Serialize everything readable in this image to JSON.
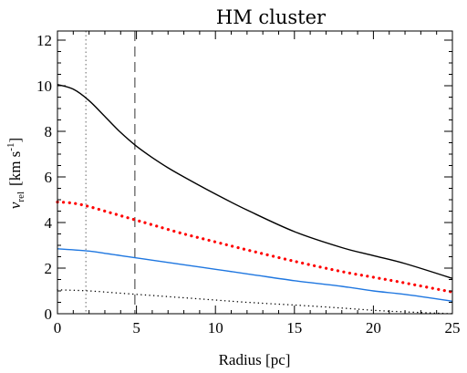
{
  "chart_data": {
    "type": "line",
    "title": "HM cluster",
    "xlabel": "Radius [pc]",
    "ylabel_main": "v",
    "ylabel_sub": "rel",
    "ylabel_unit_open": "[km s",
    "ylabel_unit_sup": "-1",
    "ylabel_unit_close": "]",
    "xlim": [
      0,
      25
    ],
    "ylim": [
      0,
      12.4
    ],
    "xticks": [
      0,
      5,
      10,
      15,
      20,
      25
    ],
    "xtick_labels": [
      "0",
      "5",
      "10",
      "15",
      "20",
      "25"
    ],
    "yticks": [
      0,
      2,
      4,
      6,
      8,
      10,
      12
    ],
    "ytick_labels": [
      "0",
      "2",
      "4",
      "6",
      "8",
      "10",
      "12"
    ],
    "grid": false,
    "vlines": [
      {
        "x": 1.8,
        "style": "dotted",
        "color": "#808080"
      },
      {
        "x": 4.9,
        "style": "dashed",
        "color": "#555555"
      }
    ],
    "series": [
      {
        "style": "solid",
        "color": "#000000",
        "x": [
          0,
          1,
          2,
          3,
          4,
          5,
          6,
          7,
          8,
          10,
          12,
          15,
          18,
          20,
          22,
          25
        ],
        "y": [
          10.05,
          9.85,
          9.35,
          8.65,
          7.95,
          7.35,
          6.85,
          6.4,
          6.0,
          5.25,
          4.55,
          3.6,
          2.9,
          2.55,
          2.2,
          1.55
        ]
      },
      {
        "style": "dotted",
        "color": "#ff0000",
        "x": [
          0,
          1,
          2,
          3,
          4,
          5,
          6,
          8,
          10,
          12,
          15,
          18,
          20,
          22,
          25
        ],
        "y": [
          4.9,
          4.85,
          4.7,
          4.5,
          4.3,
          4.1,
          3.9,
          3.5,
          3.15,
          2.8,
          2.3,
          1.85,
          1.6,
          1.35,
          0.95
        ]
      },
      {
        "style": "solid",
        "color": "#1f77e0",
        "x": [
          0,
          2,
          3,
          4,
          5,
          6,
          8,
          10,
          12,
          15,
          18,
          20,
          22,
          25
        ],
        "y": [
          2.85,
          2.75,
          2.65,
          2.55,
          2.45,
          2.35,
          2.15,
          1.95,
          1.75,
          1.45,
          1.2,
          1.0,
          0.85,
          0.55
        ]
      },
      {
        "style": "dotted",
        "color": "#000000",
        "x": [
          0,
          2,
          4,
          6,
          8,
          10,
          12,
          15,
          18,
          20,
          22,
          25
        ],
        "y": [
          1.05,
          1.0,
          0.9,
          0.8,
          0.7,
          0.6,
          0.5,
          0.38,
          0.25,
          0.15,
          0.08,
          0.0
        ]
      }
    ]
  }
}
